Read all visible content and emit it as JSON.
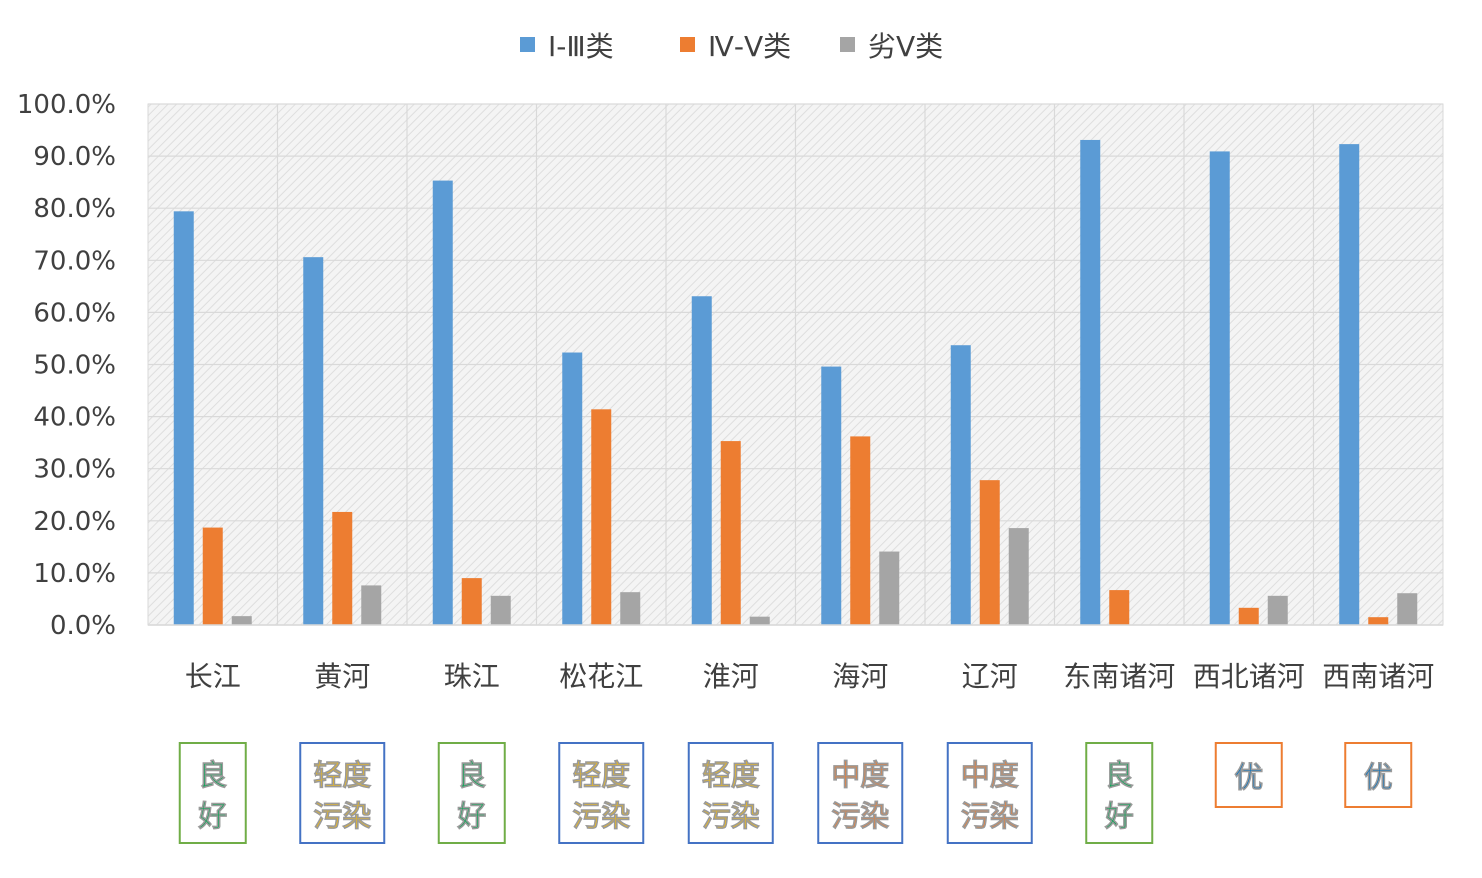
{
  "chart_data": {
    "type": "bar",
    "categories": [
      "长江",
      "黄河",
      "珠江",
      "松花江",
      "淮河",
      "海河",
      "辽河",
      "东南诸河",
      "西北诸河",
      "西南诸河"
    ],
    "series": [
      {
        "name": "Ⅰ-Ⅲ类",
        "color": "#5B9BD5",
        "values": [
          79.4,
          70.6,
          85.3,
          52.3,
          63.1,
          49.6,
          53.7,
          93.1,
          90.9,
          92.3
        ]
      },
      {
        "name": "Ⅳ-Ⅴ类",
        "color": "#ED7D31",
        "values": [
          18.7,
          21.7,
          9.0,
          41.4,
          35.3,
          36.2,
          27.8,
          6.7,
          3.3,
          1.5
        ]
      },
      {
        "name": "劣Ⅴ类",
        "color": "#A5A5A5",
        "values": [
          1.7,
          7.6,
          5.6,
          6.3,
          1.6,
          14.1,
          18.6,
          0.0,
          5.6,
          6.1
        ]
      }
    ],
    "ylim": [
      0,
      100
    ],
    "y_ticks": [
      0,
      10,
      20,
      30,
      40,
      50,
      60,
      70,
      80,
      90,
      100
    ],
    "y_tick_labels": [
      "0.0%",
      "10.0%",
      "20.0%",
      "30.0%",
      "40.0%",
      "50.0%",
      "60.0%",
      "70.0%",
      "80.0%",
      "90.0%",
      "100.0%"
    ],
    "title": "",
    "xlabel": "",
    "ylabel": "",
    "grid": true,
    "legend_position": "top-center",
    "quality_badges": [
      {
        "lines": [
          "良",
          "好"
        ],
        "text_color": "#00A651",
        "border_color": "#70AD47"
      },
      {
        "lines": [
          "轻度",
          "污染"
        ],
        "text_color": "#FFC000",
        "border_color": "#4472C4"
      },
      {
        "lines": [
          "良",
          "好"
        ],
        "text_color": "#00A651",
        "border_color": "#70AD47"
      },
      {
        "lines": [
          "轻度",
          "污染"
        ],
        "text_color": "#FFC000",
        "border_color": "#4472C4"
      },
      {
        "lines": [
          "轻度",
          "污染"
        ],
        "text_color": "#FFC000",
        "border_color": "#4472C4"
      },
      {
        "lines": [
          "中度",
          "污染"
        ],
        "text_color": "#ED7D31",
        "border_color": "#4472C4"
      },
      {
        "lines": [
          "中度",
          "污染"
        ],
        "text_color": "#ED7D31",
        "border_color": "#4472C4"
      },
      {
        "lines": [
          "良",
          "好"
        ],
        "text_color": "#00A651",
        "border_color": "#70AD47"
      },
      {
        "lines": [
          "优"
        ],
        "text_color": "#0070C0",
        "border_color": "#ED7D31"
      },
      {
        "lines": [
          "优"
        ],
        "text_color": "#0070C0",
        "border_color": "#ED7D31"
      }
    ]
  }
}
